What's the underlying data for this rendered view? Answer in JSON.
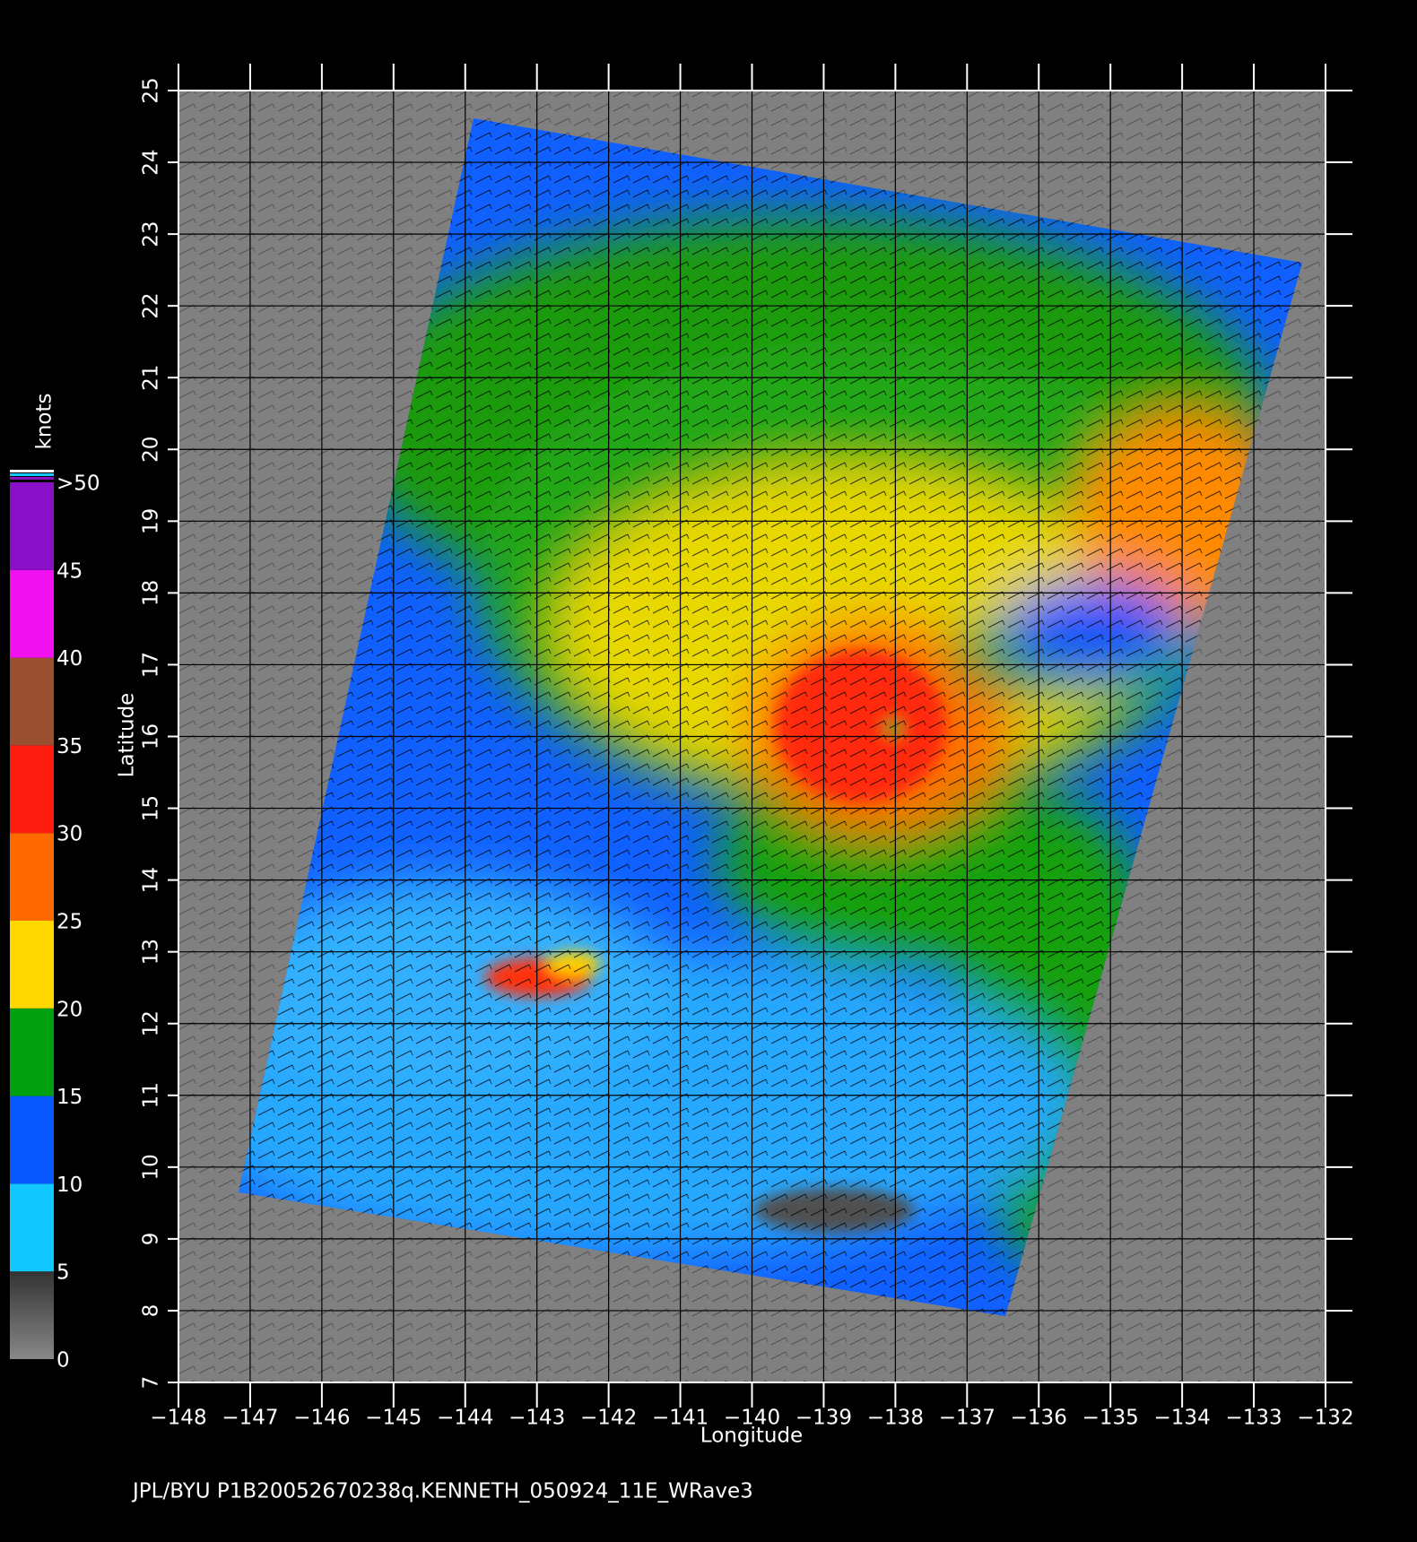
{
  "chart_data": {
    "type": "map",
    "x_label": "Longitude",
    "y_label": "Latitude",
    "xlim": [
      -148,
      -132
    ],
    "ylim": [
      7,
      25
    ],
    "xticks": [
      {
        "value": -148,
        "label": "−148"
      },
      {
        "value": -147,
        "label": "−147"
      },
      {
        "value": -146,
        "label": "−146"
      },
      {
        "value": -145,
        "label": "−145"
      },
      {
        "value": -144,
        "label": "−144"
      },
      {
        "value": -143,
        "label": "−143"
      },
      {
        "value": -142,
        "label": "−142"
      },
      {
        "value": -141,
        "label": "−141"
      },
      {
        "value": -140,
        "label": "−140"
      },
      {
        "value": -139,
        "label": "−139"
      },
      {
        "value": -138,
        "label": "−138"
      },
      {
        "value": -137,
        "label": "−137"
      },
      {
        "value": -136,
        "label": "−136"
      },
      {
        "value": -135,
        "label": "−135"
      },
      {
        "value": -134,
        "label": "−134"
      },
      {
        "value": -133,
        "label": "−133"
      },
      {
        "value": -132,
        "label": "−132"
      }
    ],
    "yticks": [
      7,
      8,
      9,
      10,
      11,
      12,
      13,
      14,
      15,
      16,
      17,
      18,
      19,
      20,
      21,
      22,
      23,
      24,
      25
    ],
    "grid": true,
    "colorbar": {
      "title": "knots",
      "ticks": [
        0,
        5,
        10,
        15,
        20,
        25,
        30,
        35,
        40,
        45,
        {
          "value": 50,
          "label": ">50"
        }
      ],
      "colors": [
        "#6a6a6a",
        "#10c8ff",
        "#0858ff",
        "#00a010",
        "#ffd800",
        "#ff6a00",
        "#ff1c10",
        "#9a5030",
        "#f010f0",
        "#8a10c8"
      ]
    },
    "footer": "JPL/BYU  P1B20052670238q.KENNETH_050924_11E_WRave3"
  }
}
